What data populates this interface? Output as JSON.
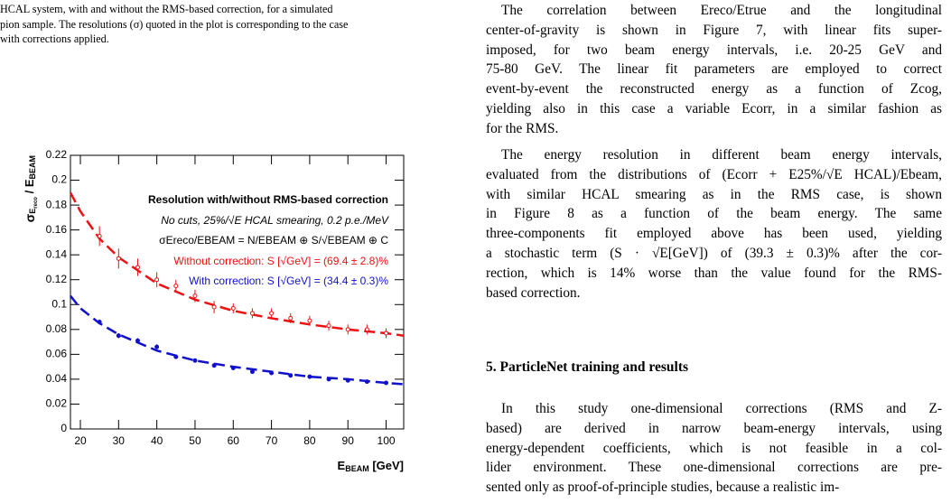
{
  "caption": {
    "lines": [
      "HCAL system, with and without the RMS-based correction, for a simulated",
      "pion sample. The resolutions (σ) quoted in the plot is corresponding to the case",
      "with corrections applied."
    ]
  },
  "chart_data": {
    "type": "scatter",
    "x_label": [
      "E",
      "BEAM",
      " [GeV]"
    ],
    "y_label": [
      "σ",
      "E",
      "reco",
      " / E",
      "BEAM"
    ],
    "annotations": [
      "Resolution with/without RMS-based correction",
      "No cuts, 25%/√E HCAL smearing, 0.2 p.e./MeV",
      "σEreco/EBEAM = N/EBEAM ⊕ S/√EBEAM ⊕ C"
    ],
    "x": [
      25,
      30,
      35,
      40,
      45,
      50,
      55,
      60,
      65,
      70,
      75,
      80,
      85,
      90,
      95,
      100
    ],
    "series": [
      {
        "name": "Without correction: S [√GeV] = (69.4  ± 2.8)%",
        "color": "#ee1111",
        "filled": false,
        "values": [
          0.155,
          0.137,
          0.13,
          0.12,
          0.115,
          0.107,
          0.098,
          0.097,
          0.093,
          0.093,
          0.089,
          0.087,
          0.083,
          0.08,
          0.08,
          0.077
        ],
        "errors": [
          0.008,
          0.008,
          0.007,
          0.006,
          0.005,
          0.005,
          0.005,
          0.004,
          0.004,
          0.004,
          0.004,
          0.004,
          0.004,
          0.004,
          0.004,
          0.004
        ]
      },
      {
        "name": "With correction: S [√GeV] = (34.4  ± 0.3)%",
        "color": "#1111cc",
        "filled": true,
        "values": [
          0.086,
          0.075,
          0.071,
          0.066,
          0.058,
          0.055,
          0.051,
          0.049,
          0.046,
          0.045,
          0.043,
          0.042,
          0.04,
          0.039,
          0.038,
          0.037
        ],
        "errors": [
          0.002,
          0.002,
          0.002,
          0.002,
          0.001,
          0.001,
          0.001,
          0.001,
          0.001,
          0.001,
          0.001,
          0.001,
          0.001,
          0.001,
          0.001,
          0.001
        ]
      }
    ],
    "fits": [
      {
        "color": "#ee1111",
        "x": [
          17.4,
          20,
          25,
          30,
          40,
          50,
          60,
          70,
          80,
          90,
          100,
          104.6
        ],
        "values": [
          0.19,
          0.175,
          0.153,
          0.138,
          0.117,
          0.104,
          0.095,
          0.089,
          0.084,
          0.08,
          0.077,
          0.075
        ]
      },
      {
        "color": "#1111cc",
        "x": [
          17.4,
          20,
          25,
          30,
          40,
          50,
          60,
          70,
          80,
          90,
          100,
          104.6
        ],
        "values": [
          0.107,
          0.097,
          0.085,
          0.076,
          0.063,
          0.055,
          0.05,
          0.046,
          0.042,
          0.04,
          0.037,
          0.036
        ]
      }
    ],
    "xlim": [
      17.4,
      104.6
    ],
    "xticks": [
      20,
      30,
      40,
      50,
      60,
      70,
      80,
      90,
      100
    ],
    "ylim": [
      0,
      0.22
    ],
    "yticks": [
      0,
      0.02,
      0.04,
      0.06,
      0.08,
      0.1,
      0.12,
      0.14,
      0.16,
      0.18,
      0.2,
      0.22
    ],
    "grid": false
  },
  "body": {
    "paragraphs": [
      [
        "The correlation between Ereco/Etrue and the longitudinal",
        "center-of-gravity is shown in Figure 7, with linear fits super-",
        "imposed, for two beam energy intervals, i.e. 20-25 GeV and",
        "75-80 GeV. The linear fit parameters are employed to correct",
        "event-by-event the reconstructed energy as a function of Zcog,",
        "yielding also in this case a variable Ecorr, in a similar fashion as",
        "for the RMS."
      ],
      [
        "The energy resolution in different beam energy intervals,",
        "evaluated from the distributions of (Ecorr + E25%/√E HCAL)/Ebeam,",
        "with similar HCAL smearing as in the RMS case, is shown",
        "in Figure 8 as a function of the beam energy.  The same",
        "three-components fit employed above has been used, yielding",
        "a stochastic term (S · √E[GeV]) of (39.3 ± 0.3)% after the cor-",
        "rection, which is 14% worse than the value found for the RMS-",
        "based correction."
      ],
      [
        "In this study one-dimensional corrections (RMS and Z-",
        "based) are derived in narrow beam-energy intervals, using",
        "energy-dependent coefficients, which is not feasible in a col-",
        "lider environment. These one-dimensional corrections are pre-",
        "sented only as proof-of-principle studies, because a realistic im-"
      ]
    ],
    "heading": "5. ParticleNet training and results"
  }
}
